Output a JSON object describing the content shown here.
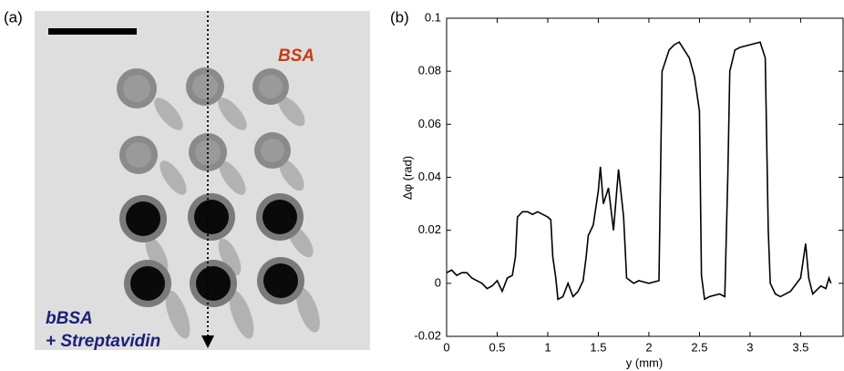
{
  "image_panel": {
    "label": "(a)",
    "top_label": "BSA",
    "bottom_labels": [
      "bBSA",
      "+ Streptavidin"
    ]
  },
  "chart_data": {
    "type": "line",
    "title": "(b)",
    "x_label": "y (mm)",
    "y_label": "Δφ (rad)",
    "color": "#000000",
    "x": [
      0,
      0.05,
      0.1,
      0.15,
      0.2,
      0.25,
      0.3,
      0.35,
      0.4,
      0.45,
      0.5,
      0.55,
      0.6,
      0.65,
      0.68,
      0.7,
      0.75,
      0.8,
      0.85,
      0.9,
      0.95,
      1.0,
      1.03,
      1.05,
      1.08,
      1.1,
      1.15,
      1.2,
      1.25,
      1.3,
      1.35,
      1.38,
      1.4,
      1.45,
      1.5,
      1.52,
      1.55,
      1.6,
      1.65,
      1.7,
      1.75,
      1.78,
      1.85,
      1.9,
      2.0,
      2.1,
      2.13,
      2.2,
      2.25,
      2.3,
      2.35,
      2.4,
      2.45,
      2.5,
      2.52,
      2.55,
      2.6,
      2.7,
      2.75,
      2.78,
      2.8,
      2.85,
      2.9,
      3.0,
      3.1,
      3.15,
      3.18,
      3.2,
      3.25,
      3.3,
      3.4,
      3.5,
      3.55,
      3.58,
      3.62,
      3.7,
      3.75,
      3.78,
      3.8
    ],
    "values": [
      0.004,
      0.005,
      0.003,
      0.004,
      0.004,
      0.002,
      0.001,
      0.0,
      -0.002,
      -0.001,
      0.001,
      -0.003,
      0.002,
      0.003,
      0.01,
      0.025,
      0.027,
      0.027,
      0.026,
      0.027,
      0.026,
      0.025,
      0.024,
      0.01,
      0.002,
      -0.006,
      -0.005,
      0.0,
      -0.005,
      -0.003,
      0.001,
      0.01,
      0.018,
      0.022,
      0.035,
      0.044,
      0.03,
      0.036,
      0.02,
      0.043,
      0.025,
      0.002,
      0.0,
      0.001,
      0.0,
      0.001,
      0.08,
      0.088,
      0.09,
      0.091,
      0.088,
      0.085,
      0.078,
      0.065,
      0.003,
      -0.006,
      -0.005,
      -0.004,
      -0.005,
      0.04,
      0.08,
      0.088,
      0.089,
      0.09,
      0.091,
      0.085,
      0.02,
      0.0,
      -0.004,
      -0.005,
      -0.003,
      0.002,
      0.015,
      0.002,
      -0.004,
      -0.001,
      -0.002,
      0.002,
      0.0
    ],
    "xlim": [
      0,
      3.92
    ],
    "xticks": [
      0,
      0.5,
      1,
      1.5,
      2,
      2.5,
      3,
      3.5
    ],
    "ylim": [
      -0.02,
      0.1
    ],
    "yticks": [
      -0.02,
      0,
      0.02,
      0.04,
      0.06,
      0.08,
      0.1
    ]
  }
}
